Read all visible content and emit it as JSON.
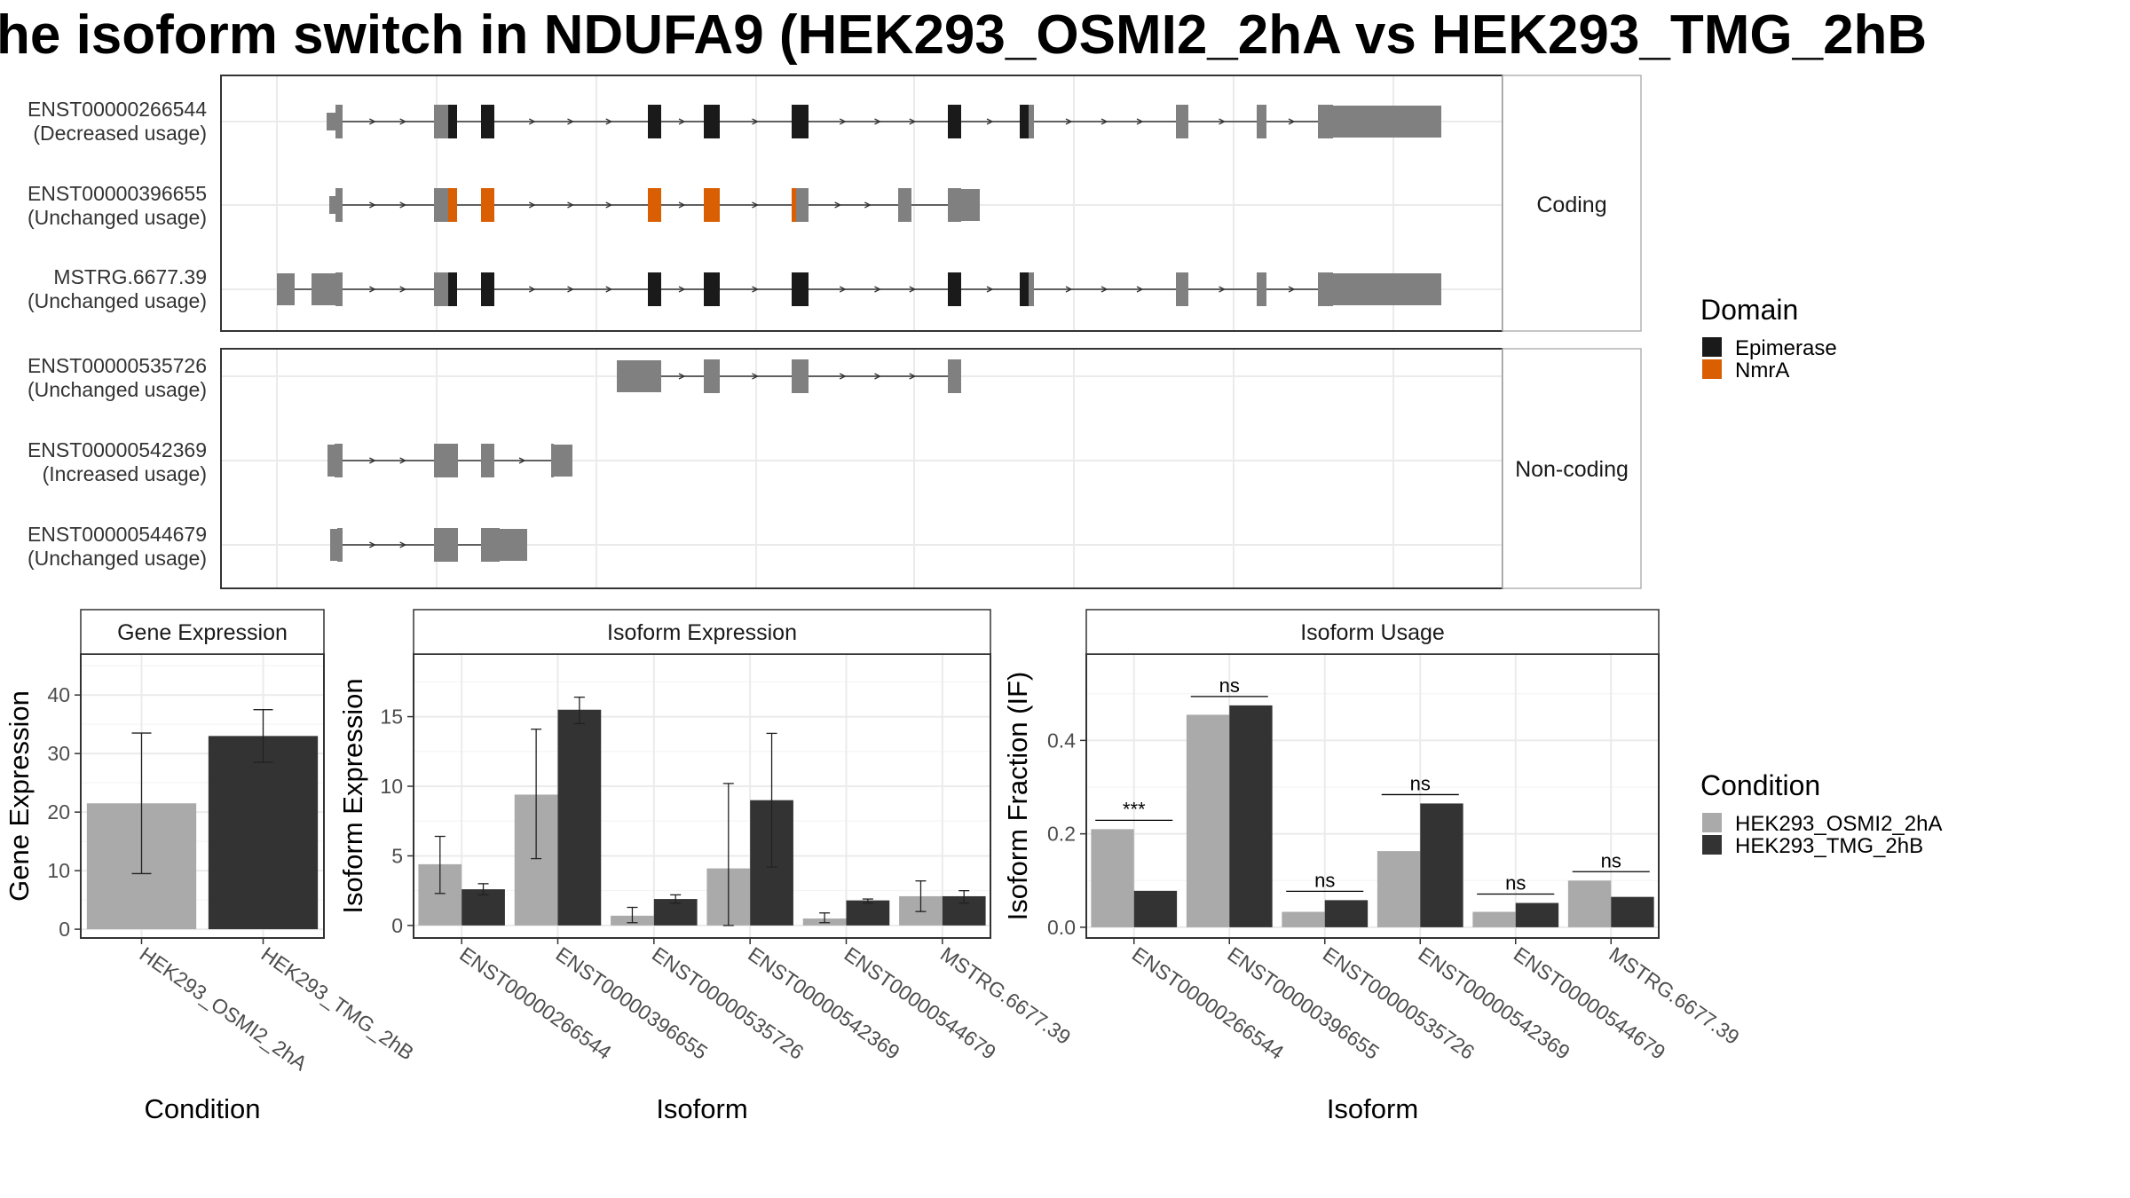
{
  "title": "he isoform switch in NDUFA9 (HEK293_OSMI2_2hA vs HEK293_TMG_2hB",
  "colors": {
    "epimerase": "#1a1a1a",
    "nmra": "#d95f02",
    "exon": "#808080",
    "cond_a": "#aaaaaa",
    "cond_b": "#333333",
    "grid": "#ebebeb",
    "panel_border": "#333333"
  },
  "structure": {
    "facets": [
      {
        "label": "Coding",
        "rows": [
          {
            "id": "ENST00000266544",
            "usage": "(Decreased usage)"
          },
          {
            "id": "ENST00000396655",
            "usage": "(Unchanged usage)"
          },
          {
            "id": "MSTRG.6677.39",
            "usage": "(Unchanged usage)"
          }
        ]
      },
      {
        "label": "Non-coding",
        "rows": [
          {
            "id": "ENST00000535726",
            "usage": "(Unchanged usage)"
          },
          {
            "id": "ENST00000542369",
            "usage": "(Increased usage)"
          },
          {
            "id": "ENST00000544679",
            "usage": "(Unchanged usage)"
          }
        ]
      }
    ]
  },
  "legend_domain": {
    "title": "Domain",
    "items": [
      {
        "label": "Epimerase",
        "color": "#1a1a1a"
      },
      {
        "label": "NmrA",
        "color": "#d95f02"
      }
    ]
  },
  "legend_condition": {
    "title": "Condition",
    "items": [
      {
        "label": "HEK293_OSMI2_2hA",
        "color": "#aaaaaa"
      },
      {
        "label": "HEK293_TMG_2hB",
        "color": "#333333"
      }
    ]
  },
  "chart_data": [
    {
      "type": "bar",
      "title": "Gene Expression",
      "xlabel": "Condition",
      "ylabel": "Gene Expression",
      "categories": [
        "HEK293_OSMI2_2hA",
        "HEK293_TMG_2hB"
      ],
      "values": [
        21.5,
        33
      ],
      "error_low": [
        9.5,
        28.5
      ],
      "error_high": [
        33.5,
        37.5
      ],
      "ylim": [
        -1.5,
        47
      ],
      "yticks": [
        0,
        10,
        20,
        30,
        40
      ]
    },
    {
      "type": "bar",
      "title": "Isoform Expression",
      "xlabel": "Isoform",
      "ylabel": "Isoform Expression",
      "categories": [
        "ENST00000266544",
        "ENST00000396655",
        "ENST00000535726",
        "ENST00000542369",
        "ENST00000544679",
        "MSTRG.6677.39"
      ],
      "series": [
        {
          "name": "HEK293_OSMI2_2hA",
          "values": [
            4.4,
            9.4,
            0.7,
            4.1,
            0.5,
            2.1
          ],
          "error_low": [
            2.3,
            4.8,
            0.2,
            0.0,
            0.2,
            1.0
          ],
          "error_high": [
            6.4,
            14.1,
            1.3,
            10.2,
            0.9,
            3.2
          ]
        },
        {
          "name": "HEK293_TMG_2hB",
          "values": [
            2.6,
            15.5,
            1.9,
            9.0,
            1.8,
            2.1
          ],
          "error_low": [
            2.2,
            14.5,
            1.6,
            4.2,
            1.6,
            1.6
          ],
          "error_high": [
            3.0,
            16.4,
            2.2,
            13.8,
            1.9,
            2.5
          ]
        }
      ],
      "ylim": [
        -0.9,
        19.5
      ],
      "yticks": [
        0,
        5,
        10,
        15
      ]
    },
    {
      "type": "bar",
      "title": "Isoform Usage",
      "xlabel": "Isoform",
      "ylabel": "Isoform Fraction (IF)",
      "categories": [
        "ENST00000266544",
        "ENST00000396655",
        "ENST00000535726",
        "ENST00000542369",
        "ENST00000544679",
        "MSTRG.6677.39"
      ],
      "series": [
        {
          "name": "HEK293_OSMI2_2hA",
          "values": [
            0.21,
            0.455,
            0.033,
            0.163,
            0.033,
            0.1
          ]
        },
        {
          "name": "HEK293_TMG_2hB",
          "values": [
            0.078,
            0.475,
            0.058,
            0.265,
            0.052,
            0.065
          ]
        }
      ],
      "annotations": [
        "***",
        "ns",
        "ns",
        "ns",
        "ns",
        "ns"
      ],
      "ylim": [
        -0.023,
        0.585
      ],
      "yticks": [
        "0.0",
        "0.2",
        "0.4"
      ]
    }
  ]
}
